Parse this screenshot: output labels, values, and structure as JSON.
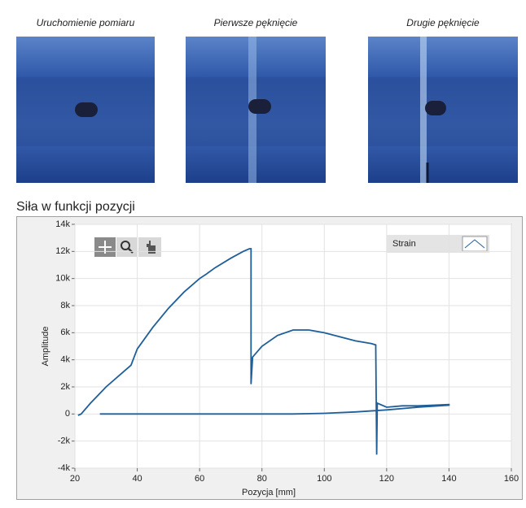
{
  "photos": [
    {
      "caption": "Uruchomienie pomiaru"
    },
    {
      "caption": "Pierwsze pęknięcie"
    },
    {
      "caption": "Drugie pęknięcie"
    }
  ],
  "chart_data": {
    "type": "line",
    "title": "Siła w funkcji pozycji",
    "x_label": "Pozycja [mm]",
    "y_label": "Amplitude",
    "x": [
      21,
      22,
      25,
      30,
      35,
      38,
      40,
      45,
      50,
      55,
      60,
      62,
      65,
      70,
      74,
      76,
      76.5,
      76.5,
      77,
      80,
      85,
      90,
      95,
      100,
      105,
      110,
      115,
      116.5,
      116.8,
      117,
      120,
      125,
      130,
      135,
      140,
      140,
      130,
      120,
      110,
      100,
      90,
      80,
      60,
      40,
      28
    ],
    "series": [
      {
        "name": "Strain",
        "color": "#1f5f99",
        "values": [
          -100,
          0,
          800,
          2000,
          3000,
          3600,
          4800,
          6400,
          7800,
          9000,
          10000,
          10300,
          10800,
          11500,
          12000,
          12200,
          12200,
          2200,
          4200,
          5000,
          5800,
          6200,
          6200,
          6000,
          5700,
          5400,
          5200,
          5100,
          -3000,
          800,
          500,
          600,
          600,
          650,
          700,
          650,
          500,
          300,
          150,
          50,
          0,
          0,
          0,
          0,
          0
        ]
      }
    ],
    "xlim": [
      20,
      160
    ],
    "xticks": [
      20,
      40,
      60,
      80,
      100,
      120,
      140,
      160
    ],
    "ylim": [
      -4000,
      14000
    ],
    "yticks": [
      {
        "value": -4000,
        "label": "-4k"
      },
      {
        "value": -2000,
        "label": "-2k"
      },
      0,
      {
        "value": 2000,
        "label": "2k"
      },
      {
        "value": 4000,
        "label": "4k"
      },
      {
        "value": 6000,
        "label": "6k"
      },
      {
        "value": 8000,
        "label": "8k"
      },
      {
        "value": 10000,
        "label": "10k"
      },
      {
        "value": 12000,
        "label": "12k"
      },
      {
        "value": 14000,
        "label": "14k"
      }
    ],
    "grid": true
  }
}
